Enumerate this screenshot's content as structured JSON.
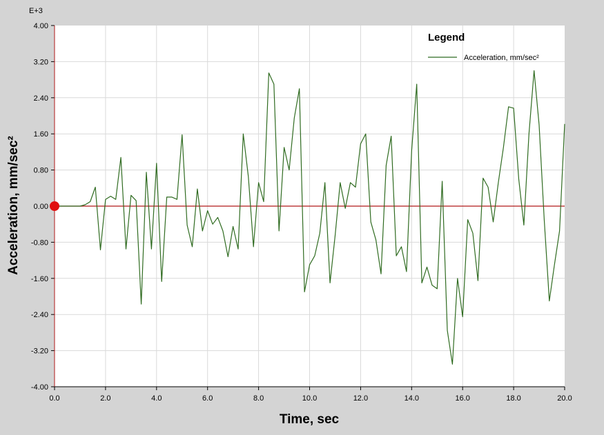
{
  "chart_data": {
    "type": "line",
    "xlabel": "Time,  sec",
    "ylabel": "Acceleration,  mm/sec²",
    "y_multiplier_label": "E+3",
    "xlim": [
      0,
      20
    ],
    "ylim": [
      -4.0,
      4.0
    ],
    "x_ticks": [
      "0.0",
      "2.0",
      "4.0",
      "6.0",
      "8.0",
      "10.0",
      "12.0",
      "14.0",
      "16.0",
      "18.0",
      "20.0"
    ],
    "y_ticks": [
      "4.00",
      "3.20",
      "2.40",
      "1.60",
      "0.80",
      "0.00",
      "-0.80",
      "-1.60",
      "-2.40",
      "-3.20",
      "-4.00"
    ],
    "grid": true,
    "legend": {
      "title": "Legend",
      "position": "top-right",
      "entries": [
        "Acceleration, mm/sec²"
      ]
    },
    "series": [
      {
        "name": "Acceleration, mm/sec²",
        "color": "#2f6b20",
        "x": [
          1.0,
          1.2,
          1.4,
          1.6,
          1.8,
          2.0,
          2.2,
          2.4,
          2.6,
          2.8,
          3.0,
          3.2,
          3.4,
          3.6,
          3.8,
          4.0,
          4.2,
          4.4,
          4.6,
          4.8,
          5.0,
          5.2,
          5.4,
          5.6,
          5.8,
          6.0,
          6.2,
          6.4,
          6.6,
          6.8,
          7.0,
          7.2,
          7.4,
          7.6,
          7.8,
          8.0,
          8.2,
          8.4,
          8.6,
          8.8,
          9.0,
          9.2,
          9.4,
          9.6,
          9.8,
          10.0,
          10.2,
          10.4,
          10.6,
          10.8,
          11.0,
          11.2,
          11.4,
          11.6,
          11.8,
          12.0,
          12.2,
          12.4,
          12.6,
          12.8,
          13.0,
          13.2,
          13.4,
          13.6,
          13.8,
          14.0,
          14.2,
          14.4,
          14.6,
          14.8,
          15.0,
          15.2,
          15.4,
          15.6,
          15.8,
          16.0,
          16.2,
          16.4,
          16.6,
          16.8,
          17.0,
          17.2,
          17.4,
          17.6,
          17.8,
          18.0,
          18.2,
          18.4,
          18.6,
          18.8,
          19.0,
          19.2,
          19.4,
          19.6,
          19.8,
          20.0
        ],
        "y": [
          0.0,
          0.03,
          0.1,
          0.42,
          -0.97,
          0.15,
          0.22,
          0.15,
          1.08,
          -0.95,
          0.24,
          0.12,
          -2.17,
          0.75,
          -0.95,
          0.95,
          -1.67,
          0.2,
          0.2,
          0.15,
          1.58,
          -0.42,
          -0.9,
          0.38,
          -0.55,
          -0.1,
          -0.4,
          -0.25,
          -0.55,
          -1.12,
          -0.45,
          -0.95,
          1.6,
          0.65,
          -0.9,
          0.52,
          0.1,
          2.95,
          2.7,
          -0.55,
          1.3,
          0.8,
          1.95,
          2.6,
          -1.9,
          -1.3,
          -1.1,
          -0.6,
          0.52,
          -1.7,
          -0.65,
          0.52,
          -0.05,
          0.52,
          0.42,
          1.38,
          1.6,
          -0.35,
          -0.75,
          -1.5,
          0.9,
          1.55,
          -1.1,
          -0.9,
          -1.45,
          1.22,
          2.7,
          -1.7,
          -1.35,
          -1.75,
          -1.83,
          0.55,
          -2.75,
          -3.5,
          -1.6,
          -2.45,
          -0.3,
          -0.6,
          -1.65,
          0.62,
          0.42,
          -0.35,
          0.52,
          1.3,
          2.2,
          2.17,
          0.6,
          -0.42,
          1.6,
          3.0,
          1.8,
          -0.3,
          -2.1,
          -1.3,
          -0.55,
          1.82
        ]
      }
    ],
    "reference_line": {
      "y": 0.0,
      "color": "#b01818"
    },
    "marker": {
      "x": 0.0,
      "y": 0.0,
      "color": "#e01010"
    }
  }
}
